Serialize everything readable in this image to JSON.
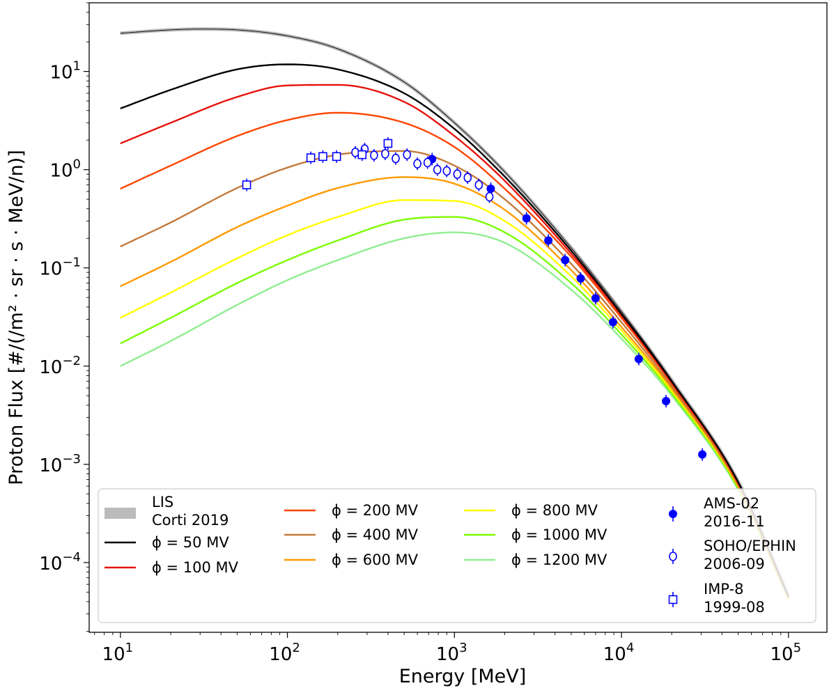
{
  "chart_data": {
    "type": "line",
    "xlabel": "Energy [MeV]",
    "ylabel": "Proton Flux [#/(/m² · sr · s · MeV/n)]",
    "x_scale": "log",
    "y_scale": "log",
    "xlim": [
      6.5,
      170000
    ],
    "ylim": [
      1.95e-05,
      50
    ],
    "grid": false,
    "legend_position": "lower-center",
    "x_ticks": [
      {
        "value": 10,
        "base": "10",
        "exp": "1"
      },
      {
        "value": 100,
        "base": "10",
        "exp": "2"
      },
      {
        "value": 1000,
        "base": "10",
        "exp": "3"
      },
      {
        "value": 10000,
        "base": "10",
        "exp": "4"
      },
      {
        "value": 100000,
        "base": "10",
        "exp": "5"
      }
    ],
    "y_ticks": [
      {
        "value": 0.0001,
        "base": "10",
        "exp": "−4"
      },
      {
        "value": 0.001,
        "base": "10",
        "exp": "−3"
      },
      {
        "value": 0.01,
        "base": "10",
        "exp": "−2"
      },
      {
        "value": 0.1,
        "base": "10",
        "exp": "−1"
      },
      {
        "value": 1,
        "base": "10",
        "exp": "0"
      },
      {
        "value": 10,
        "base": "10",
        "exp": "1"
      }
    ],
    "lis": {
      "label_line1": "LIS",
      "label_line2": "Corti 2019",
      "color": "#bbbbbb",
      "x": [
        10,
        20,
        30,
        50,
        100,
        200,
        500,
        1000,
        2000,
        5000,
        10000,
        20000,
        50000,
        100000
      ],
      "y": [
        24.5,
        26.5,
        27.0,
        26.5,
        23.0,
        17.0,
        7.8,
        3.0,
        0.95,
        0.16,
        0.036,
        0.0072,
        0.00067,
        4.65e-05
      ]
    },
    "series": [
      {
        "name": "ϕ = 50 MV",
        "phi": "50",
        "color": "#000000",
        "x": [
          10,
          20,
          50,
          100,
          200,
          500,
          1000,
          2000,
          5000,
          10000,
          20000,
          50000,
          100000
        ],
        "y": [
          4.2,
          6.5,
          10.5,
          11.8,
          10.5,
          6.0,
          2.6,
          0.85,
          0.15,
          0.034,
          0.007,
          0.00066,
          4.55e-05
        ]
      },
      {
        "name": "ϕ = 100 MV",
        "phi": "100",
        "color": "#e8120c",
        "x": [
          10,
          20,
          50,
          100,
          200,
          500,
          1000,
          2000,
          5000,
          10000,
          20000,
          50000,
          100000
        ],
        "y": [
          1.85,
          3.0,
          5.5,
          7.2,
          7.3,
          4.9,
          2.2,
          0.77,
          0.14,
          0.033,
          0.0068,
          0.00065,
          4.5e-05
        ]
      },
      {
        "name": "ϕ = 200 MV",
        "phi": "200",
        "color": "#ff4500",
        "x": [
          10,
          20,
          50,
          100,
          200,
          500,
          1000,
          2000,
          5000,
          10000,
          20000,
          50000,
          100000
        ],
        "y": [
          0.64,
          1.1,
          2.2,
          3.2,
          3.8,
          3.0,
          1.7,
          0.64,
          0.13,
          0.031,
          0.0066,
          0.00064,
          4.45e-05
        ]
      },
      {
        "name": "ϕ = 400 MV",
        "phi": "400",
        "color": "#c47a3b",
        "x": [
          10,
          20,
          50,
          100,
          200,
          500,
          1000,
          2000,
          5000,
          10000,
          20000,
          50000,
          100000
        ],
        "y": [
          0.165,
          0.29,
          0.65,
          1.05,
          1.42,
          1.55,
          1.1,
          0.5,
          0.11,
          0.028,
          0.0062,
          0.00062,
          4.4e-05
        ]
      },
      {
        "name": "ϕ = 600 MV",
        "phi": "600",
        "color": "#ff9a00",
        "x": [
          10,
          20,
          50,
          100,
          200,
          500,
          1000,
          2000,
          5000,
          10000,
          20000,
          50000,
          100000
        ],
        "y": [
          0.065,
          0.115,
          0.26,
          0.43,
          0.65,
          0.84,
          0.72,
          0.39,
          0.095,
          0.025,
          0.0059,
          0.0006,
          4.35e-05
        ]
      },
      {
        "name": "ϕ = 800 MV",
        "phi": "800",
        "color": "#ffff00",
        "x": [
          10,
          20,
          50,
          100,
          200,
          500,
          1000,
          2000,
          5000,
          10000,
          20000,
          50000,
          100000
        ],
        "y": [
          0.031,
          0.056,
          0.125,
          0.215,
          0.33,
          0.49,
          0.48,
          0.3,
          0.082,
          0.023,
          0.0056,
          0.00059,
          4.3e-05
        ]
      },
      {
        "name": "ϕ = 1000 MV",
        "phi": "1000",
        "color": "#7cfc00",
        "x": [
          10,
          20,
          50,
          100,
          200,
          500,
          1000,
          2000,
          5000,
          10000,
          20000,
          50000,
          100000
        ],
        "y": [
          0.017,
          0.031,
          0.07,
          0.12,
          0.19,
          0.31,
          0.33,
          0.23,
          0.07,
          0.021,
          0.0053,
          0.00057,
          4.25e-05
        ]
      },
      {
        "name": "ϕ = 1200 MV",
        "phi": "1200",
        "color": "#90ee90",
        "x": [
          10,
          20,
          50,
          100,
          200,
          500,
          1000,
          2000,
          5000,
          10000,
          20000,
          50000,
          100000
        ],
        "y": [
          0.01,
          0.018,
          0.042,
          0.075,
          0.12,
          0.2,
          0.23,
          0.18,
          0.06,
          0.019,
          0.005,
          0.00055,
          4.2e-05
        ]
      }
    ],
    "datasets": [
      {
        "name_line1": "AMS-02",
        "name_line2": "2016-11",
        "marker": "filled-circle",
        "color": "#0000ff",
        "x": [
          735,
          1650,
          2700,
          3650,
          4600,
          5700,
          7000,
          8900,
          12700,
          18500,
          30500
        ],
        "y": [
          1.28,
          0.64,
          0.32,
          0.19,
          0.12,
          0.078,
          0.049,
          0.028,
          0.0118,
          0.0044,
          0.00126
        ]
      },
      {
        "name_line1": "SOHO/EPHIN",
        "name_line2": "2006-09",
        "marker": "open-circle",
        "color": "#0000ff",
        "x": [
          255,
          290,
          330,
          385,
          445,
          520,
          600,
          690,
          790,
          900,
          1040,
          1200,
          1400,
          1620
        ],
        "y": [
          1.5,
          1.62,
          1.4,
          1.45,
          1.3,
          1.42,
          1.15,
          1.18,
          1.0,
          0.97,
          0.9,
          0.83,
          0.7,
          0.53
        ]
      },
      {
        "name_line1": "IMP-8",
        "name_line2": "1999-08",
        "marker": "open-square",
        "color": "#0000ff",
        "x": [
          57,
          138,
          163,
          197,
          280,
          400
        ],
        "y": [
          0.7,
          1.32,
          1.36,
          1.36,
          1.42,
          1.85
        ]
      }
    ]
  }
}
